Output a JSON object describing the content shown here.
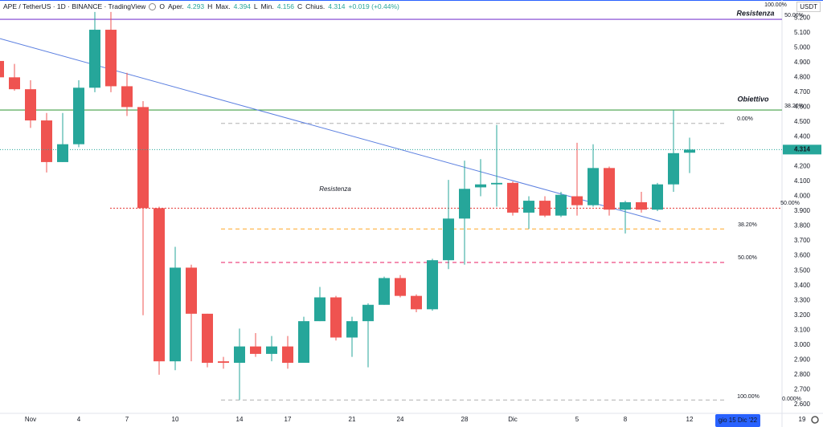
{
  "chart_data": {
    "type": "candlestick",
    "header": {
      "symbol": "APE / TetherUS · 1D · BINANCE · TradingView",
      "fields": [
        {
          "key": "O",
          "name": "Aper.",
          "value": 4.293
        },
        {
          "key": "H",
          "name": "Max.",
          "value": 4.394
        },
        {
          "key": "L",
          "name": "Min.",
          "value": 4.156
        },
        {
          "key": "C",
          "name": "Chius.",
          "value": 4.314
        }
      ],
      "change": "+0.019 (+0.44%)"
    },
    "currency": "USDT",
    "categories": [
      null,
      null,
      "Nov",
      null,
      null,
      "4",
      null,
      null,
      "7",
      null,
      null,
      "10",
      null,
      null,
      null,
      "14",
      null,
      null,
      "17",
      null,
      null,
      null,
      "21",
      null,
      null,
      "24",
      null,
      null,
      null,
      "28",
      null,
      null,
      "Dic",
      null,
      null,
      null,
      "5",
      null,
      null,
      "8",
      null,
      null,
      null,
      "12",
      null,
      null,
      null,
      null,
      null,
      null,
      "19"
    ],
    "series": {
      "up_color": "#26a69a",
      "down_color": "#ef5350",
      "open": [
        4.91,
        4.8,
        4.72,
        4.51,
        4.23,
        4.35,
        4.73,
        5.12,
        4.74,
        4.6,
        3.92,
        2.89,
        3.52,
        3.21,
        2.89,
        2.88,
        2.99,
        2.94,
        2.99,
        2.88,
        3.16,
        3.32,
        3.05,
        3.16,
        3.27,
        3.45,
        3.33,
        3.24,
        3.57,
        3.85,
        4.06,
        4.08,
        4.09,
        3.89,
        3.97,
        3.87,
        4.0,
        3.94,
        4.19,
        3.91,
        3.96,
        3.91,
        4.08,
        4.293,
        null,
        null,
        null,
        null,
        null,
        null,
        null
      ],
      "high": [
        4.92,
        4.89,
        4.78,
        4.56,
        4.56,
        4.78,
        5.24,
        5.24,
        4.83,
        4.64,
        3.93,
        3.66,
        3.54,
        3.21,
        2.92,
        3.11,
        3.08,
        3.06,
        3.06,
        3.19,
        3.39,
        3.33,
        3.19,
        3.28,
        3.46,
        3.47,
        3.34,
        3.58,
        4.11,
        4.24,
        4.25,
        4.48,
        4.1,
        4.0,
        4.0,
        4.03,
        4.36,
        4.35,
        4.2,
        3.97,
        4.03,
        4.09,
        4.58,
        4.394,
        null,
        null,
        null,
        null,
        null,
        null,
        null
      ],
      "low": [
        4.78,
        4.71,
        4.46,
        4.16,
        4.23,
        4.33,
        4.7,
        4.7,
        4.54,
        3.2,
        2.8,
        2.83,
        2.89,
        2.85,
        2.84,
        2.63,
        2.92,
        2.89,
        2.84,
        2.88,
        3.16,
        3.03,
        2.92,
        2.85,
        3.27,
        3.32,
        3.22,
        3.23,
        3.51,
        3.54,
        4.0,
        3.93,
        3.87,
        3.78,
        3.86,
        3.86,
        3.87,
        3.93,
        3.87,
        3.75,
        3.89,
        3.9,
        4.03,
        4.156,
        null,
        null,
        null,
        null,
        null,
        null,
        null
      ],
      "close": [
        4.8,
        4.72,
        4.51,
        4.23,
        4.35,
        4.73,
        5.12,
        4.74,
        4.6,
        3.92,
        2.89,
        3.52,
        3.21,
        2.88,
        2.88,
        2.99,
        2.94,
        2.99,
        2.88,
        3.16,
        3.32,
        3.05,
        3.16,
        3.27,
        3.45,
        3.33,
        3.24,
        3.57,
        3.85,
        4.05,
        4.08,
        4.09,
        3.89,
        3.97,
        3.87,
        4.01,
        3.94,
        4.19,
        3.91,
        3.96,
        3.91,
        4.08,
        4.29,
        4.314,
        null,
        null,
        null,
        null,
        null,
        null,
        null
      ]
    },
    "ylim": [
      2.54,
      5.32
    ],
    "yticks": [
      {
        "value": 2.6,
        "label": "2.600"
      },
      {
        "value": 2.7,
        "label": "2.700"
      },
      {
        "value": 2.8,
        "label": "2.800"
      },
      {
        "value": 2.9,
        "label": "2.900"
      },
      {
        "value": 3.0,
        "label": "3.000"
      },
      {
        "value": 3.1,
        "label": "3.100"
      },
      {
        "value": 3.2,
        "label": "3.200"
      },
      {
        "value": 3.3,
        "label": "3.300"
      },
      {
        "value": 3.4,
        "label": "3.400"
      },
      {
        "value": 3.5,
        "label": "3.500"
      },
      {
        "value": 3.6,
        "label": "3.600"
      },
      {
        "value": 3.7,
        "label": "3.700"
      },
      {
        "value": 3.8,
        "label": "3.800"
      },
      {
        "value": 3.9,
        "label": "3.900"
      },
      {
        "value": 4.0,
        "label": "4.000"
      },
      {
        "value": 4.1,
        "label": "4.100"
      },
      {
        "value": 4.2,
        "label": "4.200"
      },
      {
        "value": 4.3,
        "label": "4.300"
      },
      {
        "value": 4.4,
        "label": "4.400"
      },
      {
        "value": 4.5,
        "label": "4.500"
      },
      {
        "value": 4.6,
        "label": "4.600"
      },
      {
        "value": 4.7,
        "label": "4.700"
      },
      {
        "value": 4.8,
        "label": "4.800"
      },
      {
        "value": 4.9,
        "label": "4.900"
      },
      {
        "value": 5.0,
        "label": "5.000"
      },
      {
        "value": 5.1,
        "label": "5.100"
      },
      {
        "value": 5.2,
        "label": "5.200"
      }
    ],
    "grid": false,
    "last_price": {
      "value": 4.314,
      "label": "4.314",
      "color": "#26a69a"
    },
    "crosshair_label": "gio 15 Dic '22",
    "trendline": {
      "color": "#5b7fe0",
      "points": [
        {
          "x": 0.1,
          "y": 5.06
        },
        {
          "x": 41.2,
          "y": 3.83
        }
      ]
    },
    "levels": [
      {
        "value": 5.19,
        "color": "#7e3fd1",
        "style": "solid",
        "label": "50.00%"
      },
      {
        "value": 4.58,
        "color": "#43a047",
        "style": "solid",
        "label": "38.20%"
      },
      {
        "value": 4.49,
        "color": "#b0b0b0",
        "style": "dashed",
        "label": "0.00%"
      },
      {
        "value": 3.92,
        "color": "#e53935",
        "style": "dotted",
        "label": "50.00%"
      },
      {
        "value": 3.78,
        "color": "#ffa726",
        "style": "dashed",
        "label": "38.20%"
      },
      {
        "value": 3.555,
        "color": "#e91e63",
        "style": "dashed",
        "label": "50.00%"
      },
      {
        "value": 2.63,
        "color": "#b0b0b0",
        "style": "dashed",
        "label": "100.00%"
      }
    ],
    "annotations": [
      {
        "text": "Resistenza",
        "color": "#e53935"
      },
      {
        "text": "Obiettivo",
        "color": "#26a69a"
      },
      {
        "text": "Resistenza",
        "color": "#ef5350"
      },
      {
        "text": "100.00%",
        "color": "#c8c8c8"
      },
      {
        "text": "0.000%",
        "color": "#9e9e9e"
      }
    ]
  }
}
